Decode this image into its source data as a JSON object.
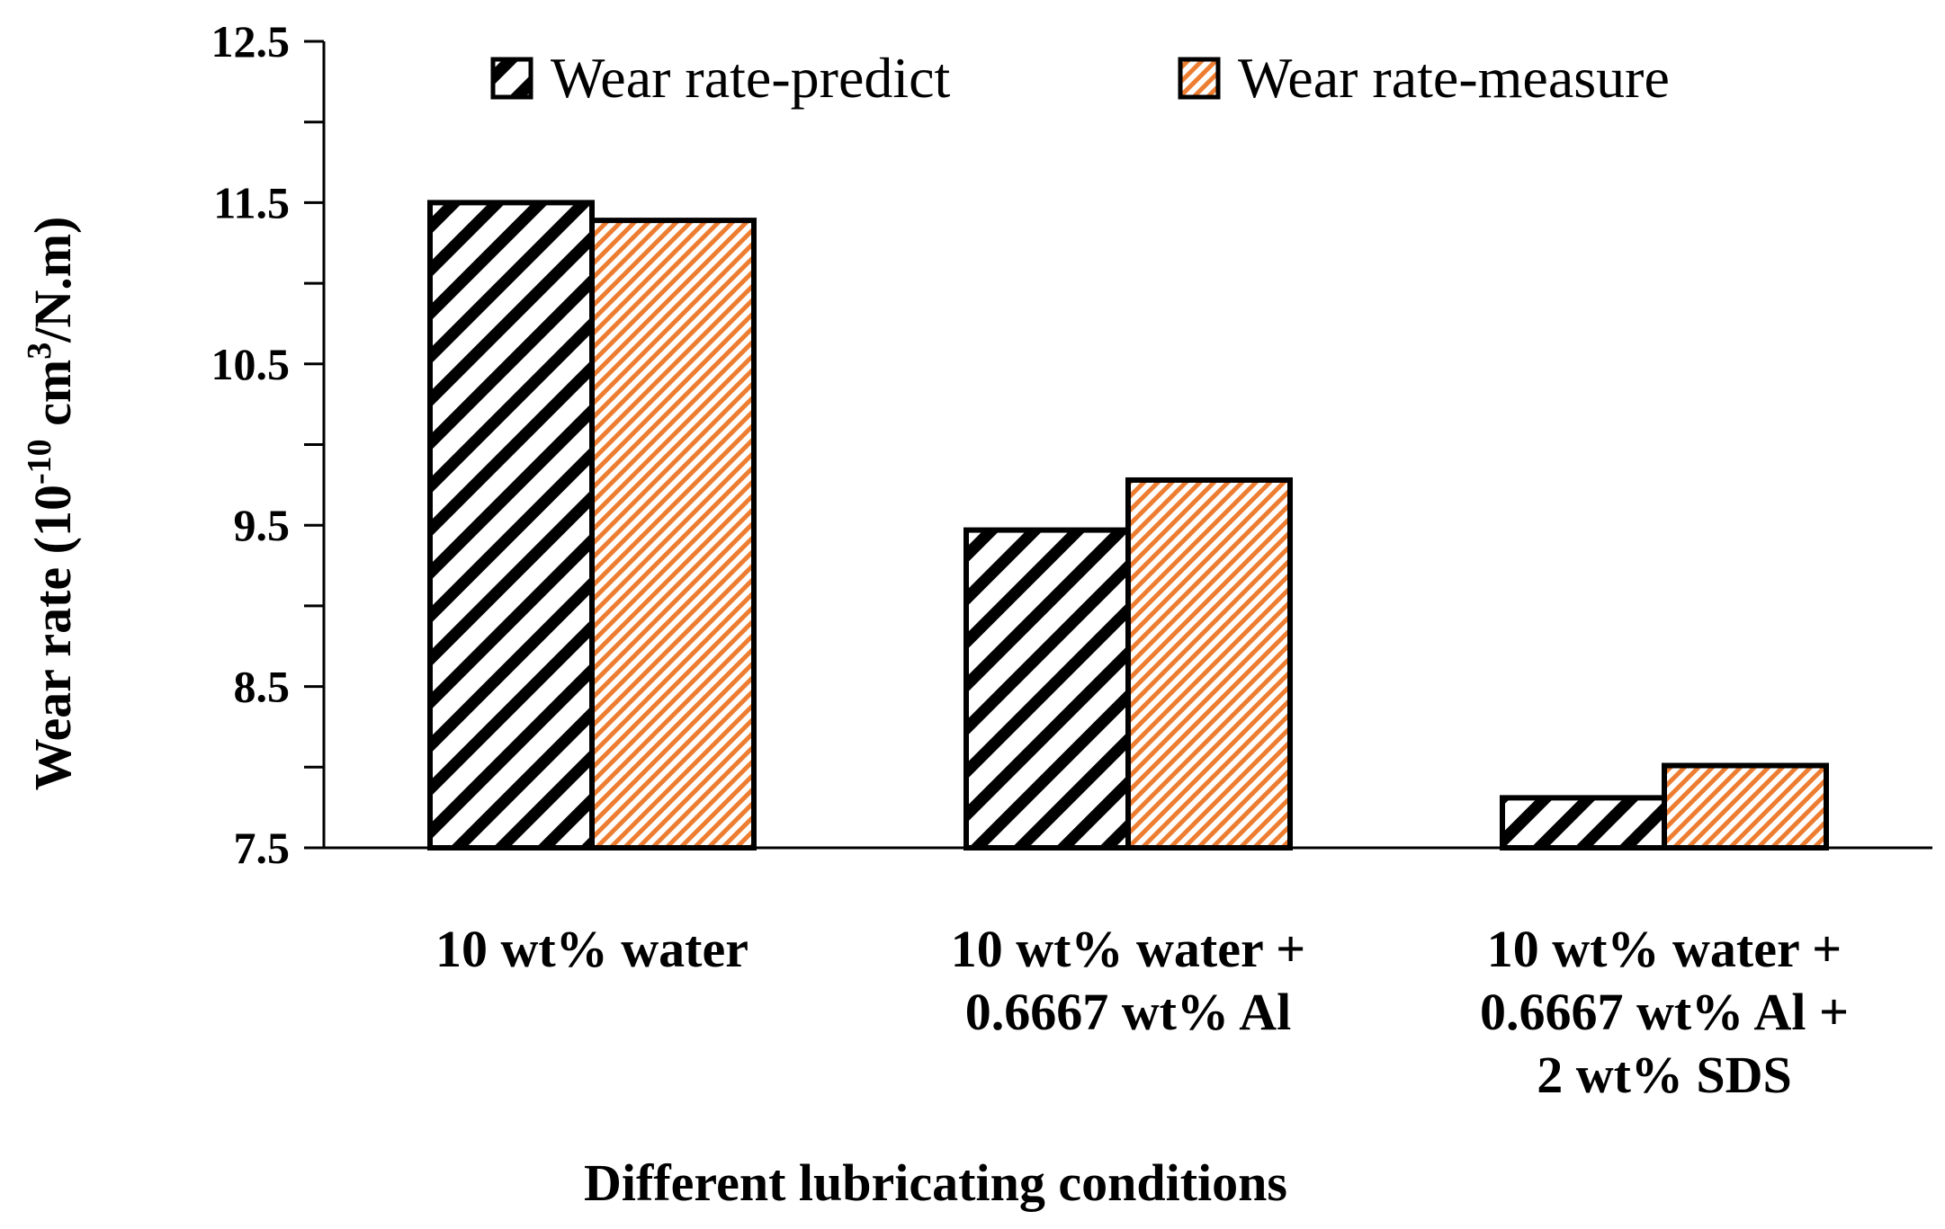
{
  "chart_data": {
    "type": "bar",
    "title": "",
    "xlabel": "Different lubricating conditions",
    "ylabel": {
      "prefix": "Wear rate (10",
      "exp1": "-10",
      "mid": " cm",
      "exp2": "3",
      "suffix": "/N.m)"
    },
    "ylim": [
      7.5,
      12.5
    ],
    "yticks": [
      "7.5",
      "8.5",
      "9.5",
      "10.5",
      "11.5",
      "12.5"
    ],
    "categories": [
      [
        "10 wt% water"
      ],
      [
        "10 wt% water +",
        "0.6667 wt% Al"
      ],
      [
        "10 wt% water +",
        "0.6667 wt% Al +",
        "2 wt% SDS"
      ]
    ],
    "series": [
      {
        "name": "Wear rate-predict",
        "values": [
          11.5,
          9.47,
          7.81
        ],
        "color": "#000000"
      },
      {
        "name": "Wear rate-measure",
        "values": [
          11.39,
          9.78,
          8.01
        ],
        "color": "#ED7D31"
      }
    ],
    "legend": "top"
  }
}
